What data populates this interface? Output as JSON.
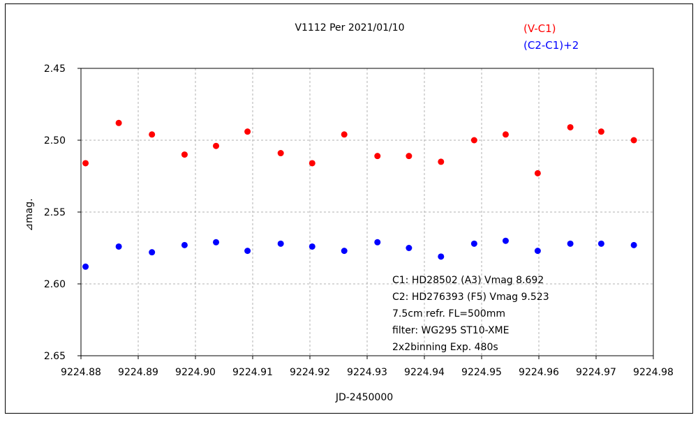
{
  "chart_data": {
    "type": "scatter",
    "title": "V1112 Per   2021/01/10",
    "xlabel": "JD-2450000",
    "ylabel": "⊿mag.",
    "xlim": [
      9224.88,
      9224.98
    ],
    "ylim": [
      2.45,
      2.65
    ],
    "y_inverted": true,
    "grid": true,
    "x_ticks": [
      "9224.88",
      "9224.89",
      "9224.90",
      "9224.91",
      "9224.92",
      "9224.93",
      "9224.94",
      "9224.95",
      "9224.96",
      "9224.97",
      "9224.98"
    ],
    "y_ticks": [
      "2.45",
      "2.50",
      "2.55",
      "2.60",
      "2.65"
    ],
    "legend_position": "top-right",
    "series": [
      {
        "name": "(V-C1)",
        "color": "#ff0000",
        "points": [
          [
            9224.8808,
            2.516
          ],
          [
            9224.8866,
            2.488
          ],
          [
            9224.8924,
            2.496
          ],
          [
            9224.8981,
            2.51
          ],
          [
            9224.9036,
            2.504
          ],
          [
            9224.9091,
            2.494
          ],
          [
            9224.9149,
            2.509
          ],
          [
            9224.9204,
            2.516
          ],
          [
            9224.926,
            2.496
          ],
          [
            9224.9318,
            2.511
          ],
          [
            9224.9373,
            2.511
          ],
          [
            9224.9429,
            2.515
          ],
          [
            9224.9487,
            2.5
          ],
          [
            9224.9542,
            2.496
          ],
          [
            9224.9598,
            2.523
          ],
          [
            9224.9655,
            2.491
          ],
          [
            9224.9709,
            2.494
          ],
          [
            9224.9766,
            2.5
          ]
        ]
      },
      {
        "name": "(C2-C1)+2",
        "color": "#0000ff",
        "points": [
          [
            9224.8808,
            2.588
          ],
          [
            9224.8866,
            2.574
          ],
          [
            9224.8924,
            2.578
          ],
          [
            9224.8981,
            2.573
          ],
          [
            9224.9036,
            2.571
          ],
          [
            9224.9091,
            2.577
          ],
          [
            9224.9149,
            2.572
          ],
          [
            9224.9204,
            2.574
          ],
          [
            9224.926,
            2.577
          ],
          [
            9224.9318,
            2.571
          ],
          [
            9224.9373,
            2.575
          ],
          [
            9224.9429,
            2.581
          ],
          [
            9224.9487,
            2.572
          ],
          [
            9224.9542,
            2.57
          ],
          [
            9224.9598,
            2.577
          ],
          [
            9224.9655,
            2.572
          ],
          [
            9224.9709,
            2.572
          ],
          [
            9224.9766,
            2.573
          ]
        ]
      }
    ],
    "annotations": [
      "C1: HD28502 (A3) Vmag 8.692",
      "C2: HD276393 (F5) Vmag 9.523",
      "7.5cm refr. FL=500mm",
      "filter: WG295  ST10-XME",
      "2x2binning  Exp. 480s"
    ]
  }
}
